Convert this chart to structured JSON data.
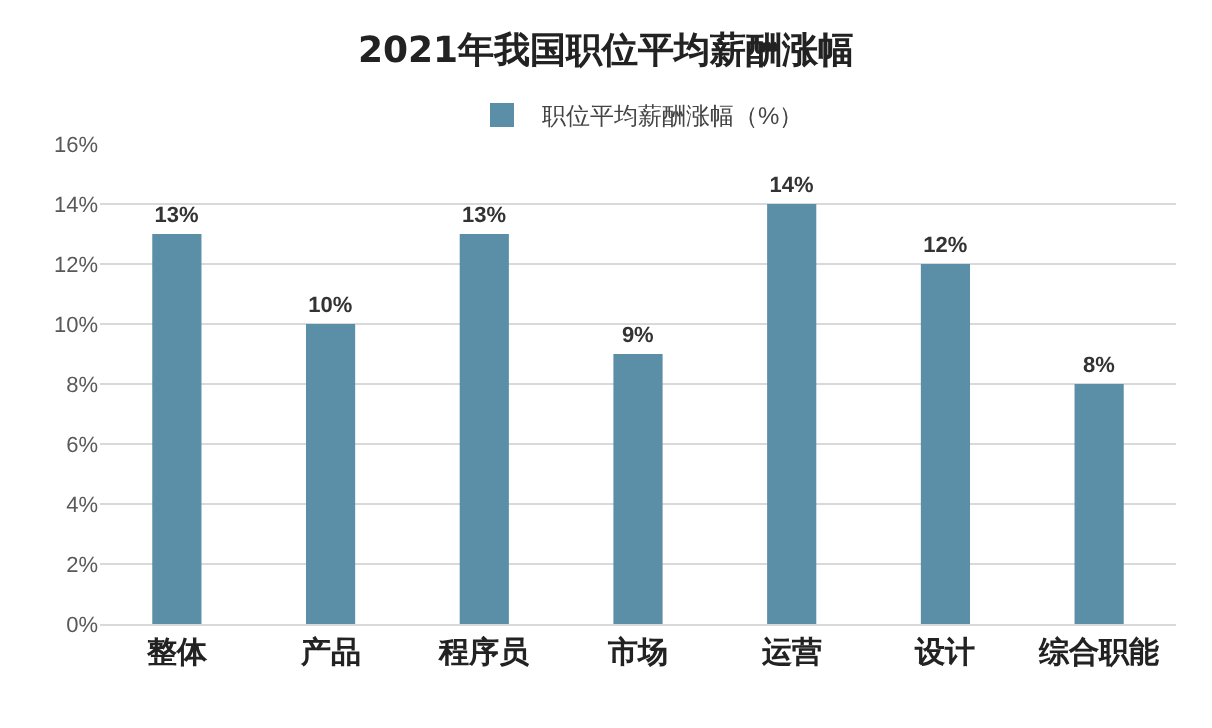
{
  "chart_data": {
    "type": "bar",
    "title": "2021年我国职位平均薪酬涨幅",
    "categories": [
      "整体",
      "产品",
      "程序员",
      "市场",
      "运营",
      "设计",
      "综合职能"
    ],
    "series": [
      {
        "name": "职位平均薪酬涨幅（%）",
        "color": "#5b8fa8",
        "values": [
          13,
          10,
          13,
          9,
          14,
          12,
          8
        ],
        "value_labels": [
          "13%",
          "10%",
          "13%",
          "9%",
          "14%",
          "12%",
          "8%"
        ]
      }
    ],
    "ylim": [
      0,
      16
    ],
    "yticks": [
      {
        "value": 0,
        "label": "0%"
      },
      {
        "value": 2,
        "label": "2%"
      },
      {
        "value": 4,
        "label": "4%"
      },
      {
        "value": 6,
        "label": "6%"
      },
      {
        "value": 8,
        "label": "8%"
      },
      {
        "value": 10,
        "label": "10%"
      },
      {
        "value": 12,
        "label": "12%"
      },
      {
        "value": 14,
        "label": "14%"
      },
      {
        "value": 16,
        "label": "16%"
      }
    ],
    "grid": "y",
    "legend": "top"
  }
}
